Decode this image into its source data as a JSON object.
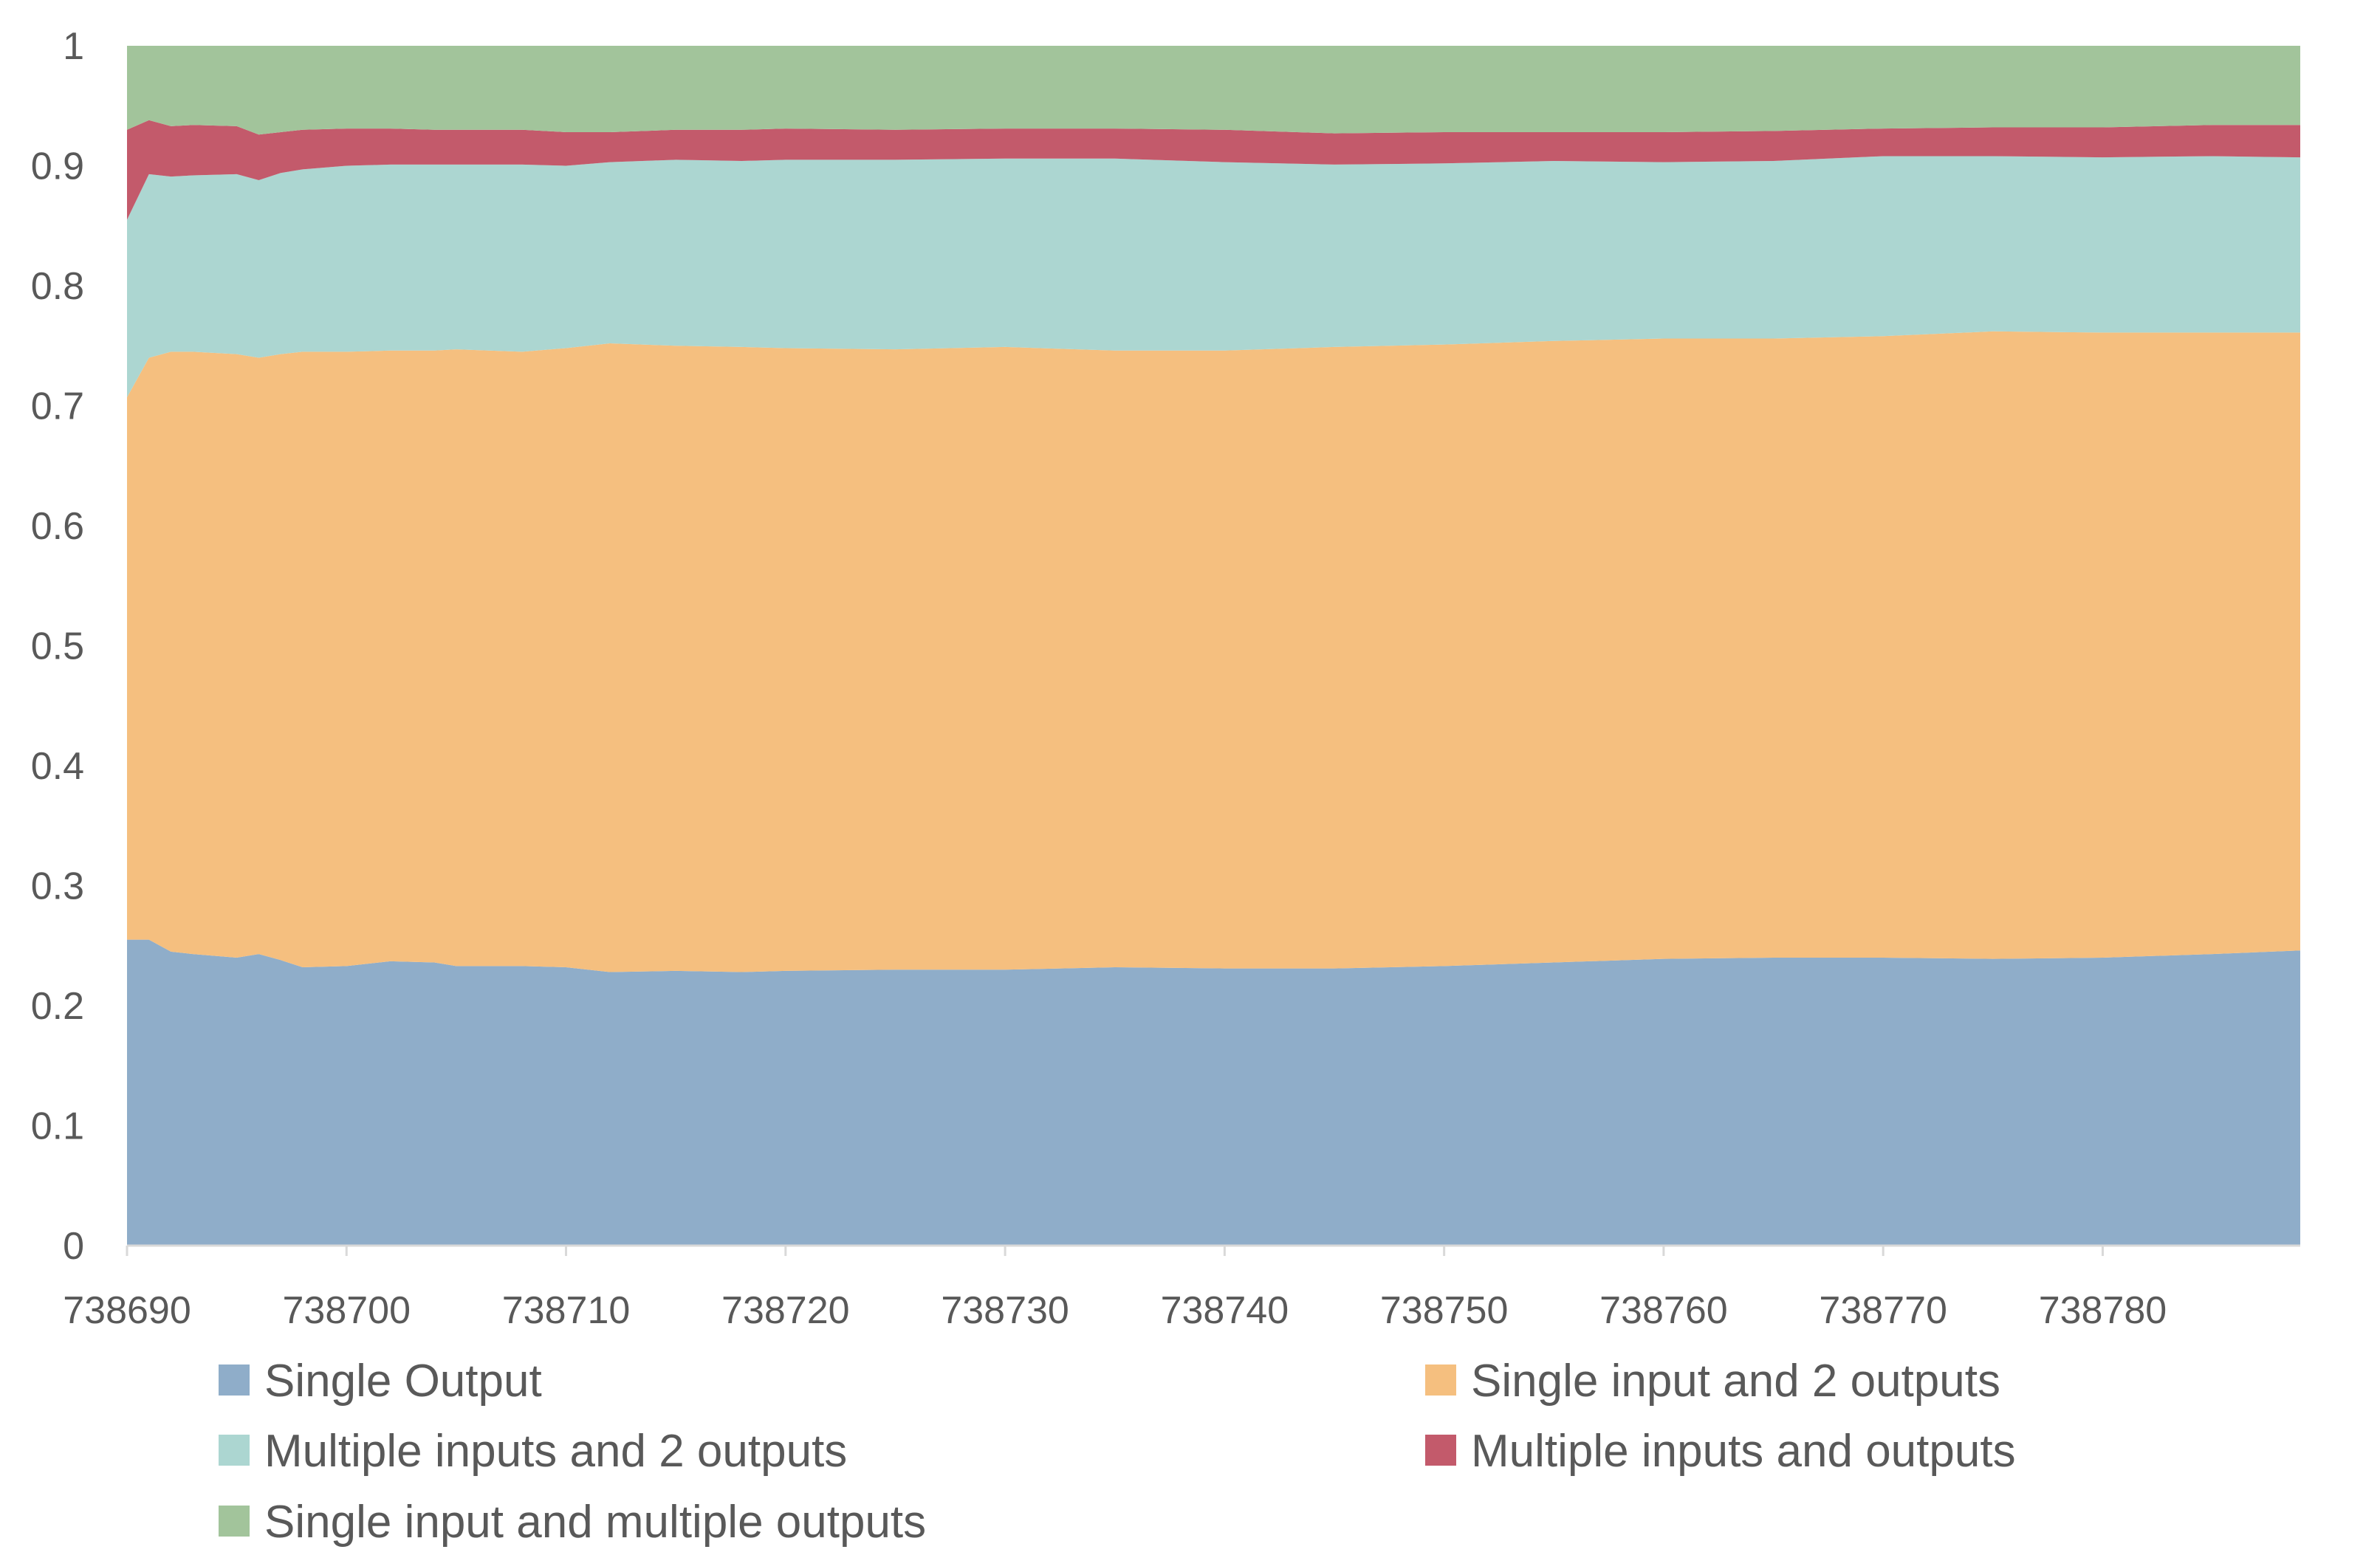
{
  "chart_data": {
    "type": "area",
    "stacked": true,
    "normalized": true,
    "title": "",
    "xlabel": "",
    "ylabel": "",
    "xlim": [
      738690,
      738789
    ],
    "ylim": [
      0,
      1
    ],
    "x_ticks": [
      738690,
      738700,
      738710,
      738720,
      738730,
      738740,
      738750,
      738760,
      738770,
      738780
    ],
    "x_tick_labels": [
      "738690",
      "738700",
      "738710",
      "738720",
      "738730",
      "738740",
      "738750",
      "738760",
      "738770",
      "738780"
    ],
    "y_ticks": [
      0,
      0.1,
      0.2,
      0.3,
      0.4,
      0.5,
      0.6,
      0.7,
      0.8,
      0.9,
      1
    ],
    "y_tick_labels": [
      "0",
      "0.1",
      "0.2",
      "0.3",
      "0.4",
      "0.5",
      "0.6",
      "0.7",
      "0.8",
      "0.9",
      "1"
    ],
    "grid": false,
    "legend_position": "bottom",
    "x": [
      738690,
      738691,
      738692,
      738693,
      738695,
      738696,
      738697,
      738698,
      738700,
      738702,
      738704,
      738705,
      738708,
      738710,
      738712,
      738715,
      738718,
      738720,
      738725,
      738730,
      738735,
      738740,
      738745,
      738750,
      738755,
      738760,
      738765,
      738770,
      738775,
      738780,
      738785,
      738789
    ],
    "series": [
      {
        "name": "Single Output",
        "color": "#8fadc9",
        "values": [
          0.255,
          0.255,
          0.245,
          0.243,
          0.24,
          0.243,
          0.238,
          0.232,
          0.233,
          0.237,
          0.236,
          0.233,
          0.233,
          0.232,
          0.228,
          0.229,
          0.228,
          0.229,
          0.23,
          0.23,
          0.232,
          0.231,
          0.231,
          0.233,
          0.236,
          0.239,
          0.24,
          0.24,
          0.239,
          0.24,
          0.243,
          0.246
        ]
      },
      {
        "name": "Single input and 2 outputs",
        "color": "#f5bf7f",
        "values": [
          0.452,
          0.485,
          0.5,
          0.502,
          0.503,
          0.497,
          0.505,
          0.513,
          0.512,
          0.509,
          0.51,
          0.514,
          0.512,
          0.516,
          0.524,
          0.521,
          0.521,
          0.519,
          0.517,
          0.519,
          0.514,
          0.515,
          0.518,
          0.518,
          0.518,
          0.517,
          0.516,
          0.518,
          0.523,
          0.521,
          0.518,
          0.515
        ]
      },
      {
        "name": "Multiple inputs and 2 outputs",
        "color": "#acd6d1",
        "values": [
          0.148,
          0.153,
          0.146,
          0.147,
          0.15,
          0.148,
          0.151,
          0.152,
          0.155,
          0.155,
          0.155,
          0.154,
          0.156,
          0.152,
          0.151,
          0.155,
          0.155,
          0.157,
          0.158,
          0.157,
          0.16,
          0.157,
          0.152,
          0.151,
          0.15,
          0.147,
          0.148,
          0.15,
          0.146,
          0.146,
          0.147,
          0.146
        ]
      },
      {
        "name": "Multiple inputs and outputs",
        "color": "#c35a6b",
        "values": [
          0.075,
          0.045,
          0.042,
          0.042,
          0.04,
          0.038,
          0.034,
          0.033,
          0.031,
          0.03,
          0.029,
          0.029,
          0.029,
          0.028,
          0.025,
          0.025,
          0.026,
          0.026,
          0.025,
          0.025,
          0.025,
          0.027,
          0.026,
          0.026,
          0.024,
          0.025,
          0.025,
          0.023,
          0.024,
          0.025,
          0.026,
          0.027
        ]
      },
      {
        "name": "Single input and multiple outputs",
        "color": "#a2c49b",
        "values": [
          0.07,
          0.062,
          0.067,
          0.066,
          0.067,
          0.074,
          0.072,
          0.07,
          0.069,
          0.069,
          0.07,
          0.07,
          0.07,
          0.072,
          0.072,
          0.07,
          0.07,
          0.069,
          0.07,
          0.069,
          0.069,
          0.07,
          0.073,
          0.072,
          0.072,
          0.072,
          0.071,
          0.069,
          0.068,
          0.068,
          0.066,
          0.066
        ]
      }
    ]
  }
}
